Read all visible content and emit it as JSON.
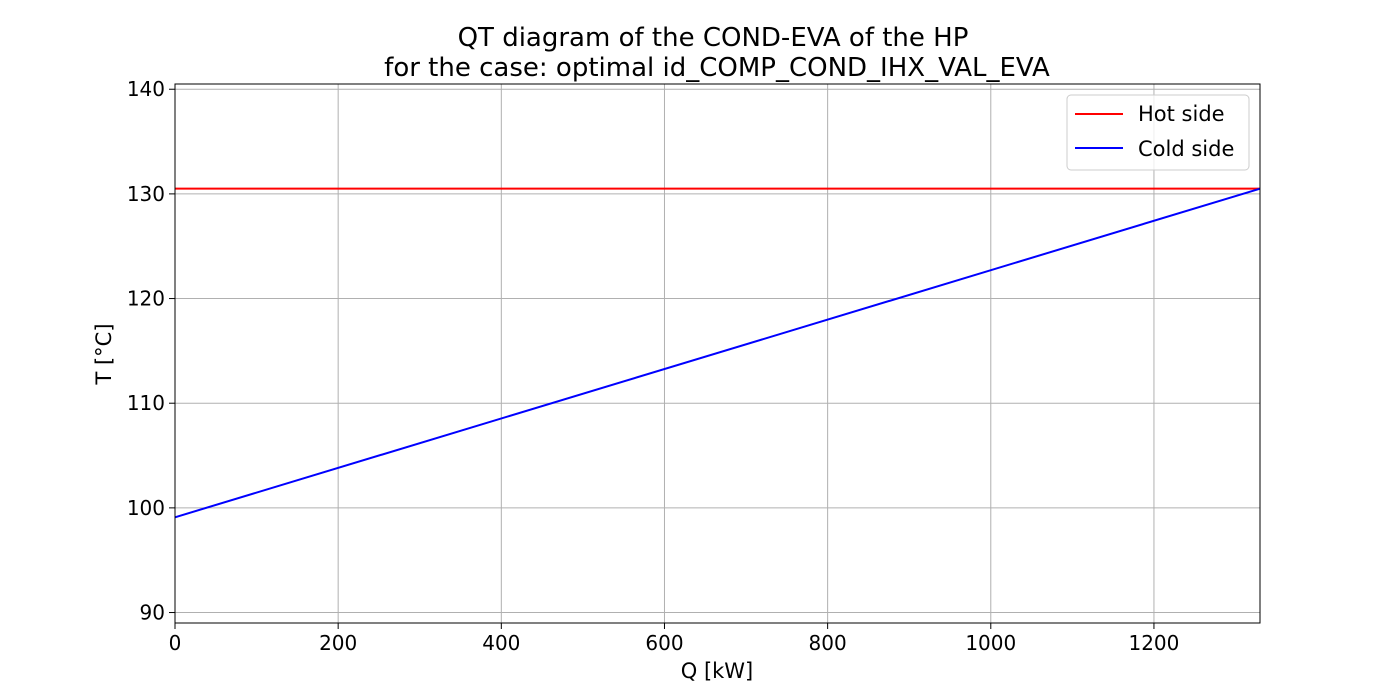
{
  "chart_data": {
    "type": "line",
    "title": [
      "QT diagram of the COND-EVA of the HP",
      "for the case: optimal id_COMP_COND_IHX_VAL_EVA"
    ],
    "xlabel": "Q [kW]",
    "ylabel": "T [°C]",
    "xlim": [
      0,
      1330
    ],
    "ylim": [
      89,
      140.5
    ],
    "xticks": [
      0,
      200,
      400,
      600,
      800,
      1000,
      1200
    ],
    "yticks": [
      90,
      100,
      110,
      120,
      130,
      140
    ],
    "grid": true,
    "legend_position": "top-right",
    "series": [
      {
        "name": "Hot side",
        "color": "#ff0000",
        "x": [
          0,
          1330
        ],
        "y": [
          130.5,
          130.5
        ]
      },
      {
        "name": "Cold side",
        "color": "#0000ff",
        "x": [
          0,
          1330
        ],
        "y": [
          99.1,
          130.5
        ]
      }
    ]
  }
}
